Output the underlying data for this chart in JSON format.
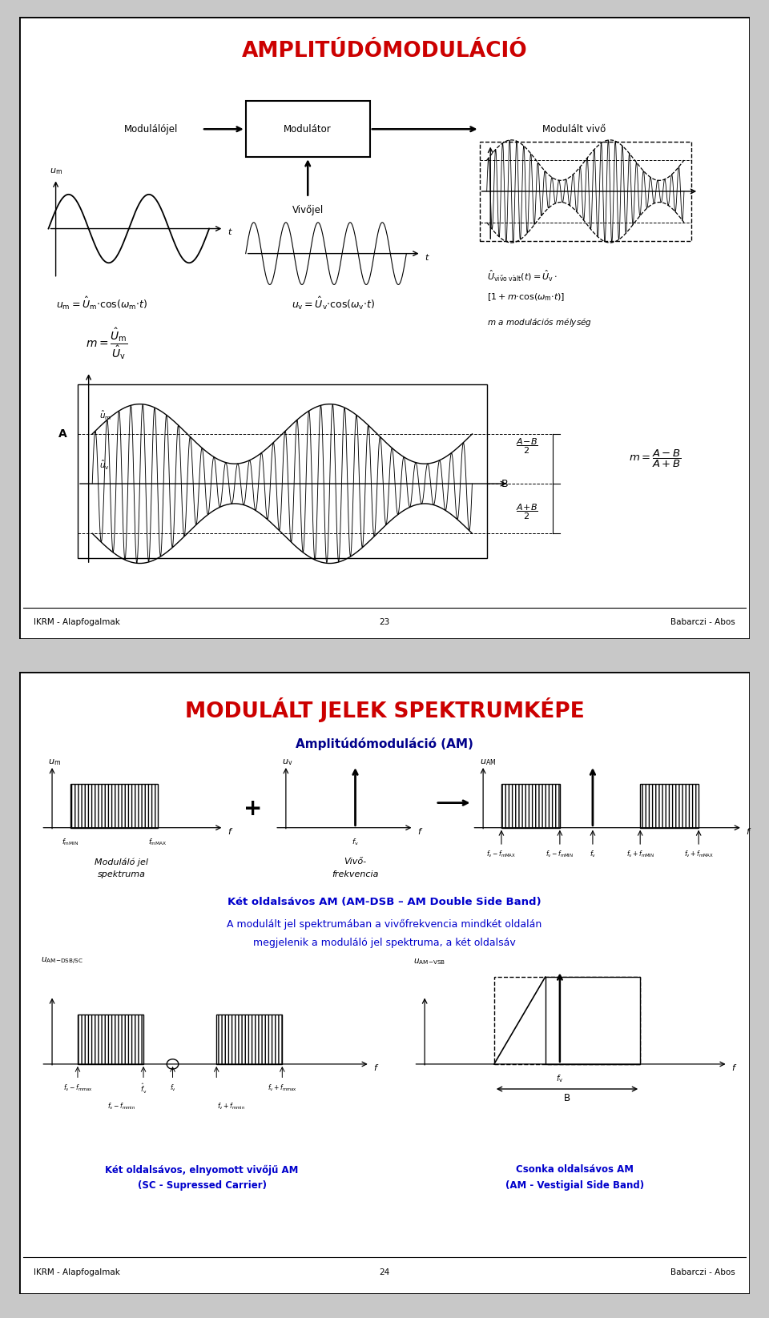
{
  "page1_title": "AMPLITÚDÓMODULÁCIÓ",
  "page2_title": "MODULÁLT JELEK SPEKTRUMKÉPE",
  "page2_subtitle": "Amplitúdómoduláció (AM)",
  "title_color": "#CC0000",
  "subtitle_color": "#00008B",
  "blue_text_color": "#0000CC",
  "page1_footer_left": "IKRM - Alapfogalmak",
  "page1_footer_center": "23",
  "page1_footer_right": "Babarczi - Abos",
  "page2_footer_left": "IKRM - Alapfogalmak",
  "page2_footer_center": "24",
  "page2_footer_right": "Babarczi - Abos"
}
